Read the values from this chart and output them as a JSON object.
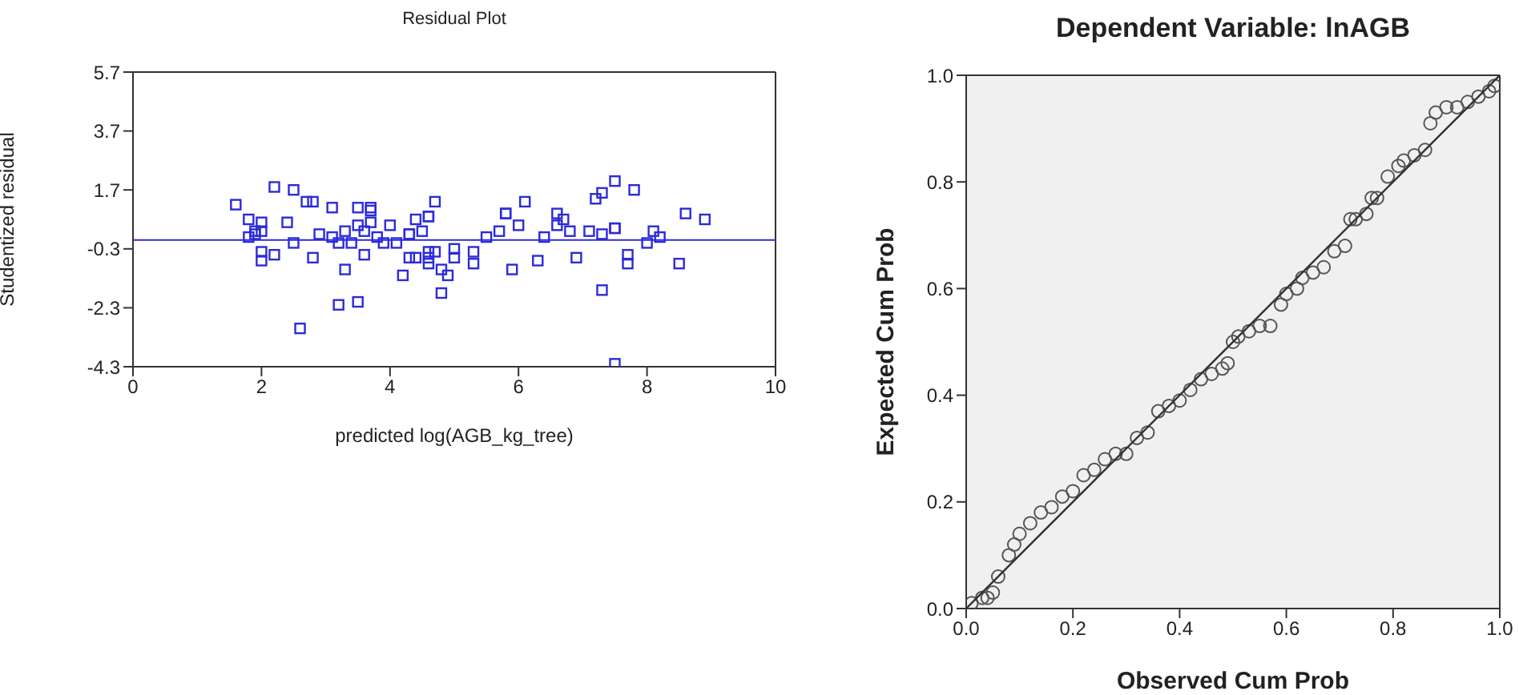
{
  "chart_data": [
    {
      "type": "scatter",
      "title": "Residual Plot",
      "xlabel": "predicted log(AGB_kg_tree)",
      "ylabel": "Studentized residual",
      "xlim": [
        0,
        10
      ],
      "xticks": [
        0,
        2,
        4,
        6,
        8,
        10
      ],
      "ylim": [
        -4.3,
        5.7
      ],
      "yticks": [
        -4.3,
        -2.3,
        -0.3,
        1.7,
        3.7,
        5.7
      ],
      "marker": "square",
      "grid": false,
      "legend": false,
      "ref_lines": [
        {
          "axis": "y",
          "value": 0,
          "color": "#2b2bd9"
        }
      ],
      "series": [
        {
          "color": "#2b2bd9",
          "x": [
            1.6,
            1.8,
            1.8,
            1.9,
            1.9,
            2.0,
            2.0,
            2.0,
            2.0,
            2.2,
            2.2,
            2.4,
            2.5,
            2.5,
            2.6,
            2.7,
            2.8,
            2.8,
            2.9,
            3.1,
            3.1,
            3.2,
            3.2,
            3.3,
            3.3,
            3.4,
            3.5,
            3.5,
            3.5,
            3.6,
            3.6,
            3.7,
            3.7,
            3.7,
            3.8,
            3.9,
            4.0,
            4.1,
            4.2,
            4.3,
            4.3,
            4.3,
            4.4,
            4.4,
            4.5,
            4.6,
            4.6,
            4.6,
            4.6,
            4.6,
            4.7,
            4.7,
            4.8,
            4.8,
            4.9,
            5.0,
            5.0,
            5.3,
            5.3,
            5.5,
            5.7,
            5.8,
            5.8,
            5.9,
            6.0,
            6.1,
            6.3,
            6.4,
            6.6,
            6.6,
            6.7,
            6.8,
            6.9,
            7.1,
            7.2,
            7.3,
            7.3,
            7.3,
            7.5,
            7.5,
            7.5,
            7.5,
            7.7,
            7.7,
            7.8,
            8.0,
            8.1,
            8.2,
            8.5,
            8.6,
            8.9
          ],
          "values": [
            1.2,
            0.7,
            0.1,
            0.2,
            0.3,
            0.3,
            0.6,
            -0.4,
            -0.7,
            -0.5,
            1.8,
            0.6,
            1.7,
            -0.1,
            -3.0,
            1.3,
            1.3,
            -0.6,
            0.2,
            0.1,
            1.1,
            -0.1,
            -2.2,
            0.3,
            -1.0,
            -0.1,
            0.5,
            -2.1,
            1.1,
            0.3,
            -0.5,
            1.0,
            0.6,
            1.1,
            0.1,
            -0.1,
            0.5,
            -0.1,
            -1.2,
            0.2,
            0.2,
            -0.6,
            0.7,
            -0.6,
            0.3,
            -0.6,
            0.8,
            0.8,
            -0.4,
            -0.8,
            -0.4,
            1.3,
            -1.8,
            -1.0,
            -1.2,
            -0.3,
            -0.6,
            -0.4,
            -0.8,
            0.1,
            0.3,
            0.9,
            0.9,
            -1.0,
            0.5,
            1.3,
            -0.7,
            0.1,
            0.9,
            0.5,
            0.7,
            0.3,
            -0.6,
            0.3,
            1.4,
            0.2,
            -1.7,
            1.6,
            0.4,
            2.0,
            0.4,
            -4.2,
            -0.8,
            -0.5,
            1.7,
            -0.1,
            0.3,
            0.1,
            -0.8,
            0.9,
            0.7
          ]
        }
      ]
    },
    {
      "type": "scatter",
      "title": "Dependent Variable: lnAGB",
      "xlabel": "Observed Cum Prob",
      "ylabel": "Expected Cum Prob",
      "xlim": [
        0,
        1
      ],
      "xticks": [
        {
          "value": 0,
          "label": "0.0"
        },
        {
          "value": 0.2,
          "label": "0.2"
        },
        {
          "value": 0.4,
          "label": "0.4"
        },
        {
          "value": 0.6,
          "label": "0.6"
        },
        {
          "value": 0.8,
          "label": "0.8"
        },
        {
          "value": 1,
          "label": "1.0"
        }
      ],
      "ylim": [
        0,
        1
      ],
      "yticks": [
        {
          "value": 0,
          "label": "0.0"
        },
        {
          "value": 0.2,
          "label": "0.2"
        },
        {
          "value": 0.4,
          "label": "0.4"
        },
        {
          "value": 0.6,
          "label": "0.6"
        },
        {
          "value": 0.8,
          "label": "0.8"
        },
        {
          "value": 1,
          "label": "1.0"
        }
      ],
      "grid": false,
      "legend": false,
      "series": [
        {
          "color": "#555555",
          "marker": "circle",
          "x": [
            0.01,
            0.03,
            0.04,
            0.05,
            0.06,
            0.08,
            0.09,
            0.1,
            0.12,
            0.14,
            0.16,
            0.18,
            0.2,
            0.22,
            0.24,
            0.26,
            0.28,
            0.3,
            0.32,
            0.34,
            0.36,
            0.38,
            0.4,
            0.42,
            0.44,
            0.46,
            0.48,
            0.49,
            0.5,
            0.51,
            0.53,
            0.55,
            0.57,
            0.59,
            0.6,
            0.62,
            0.63,
            0.65,
            0.67,
            0.69,
            0.71,
            0.72,
            0.73,
            0.75,
            0.76,
            0.77,
            0.79,
            0.81,
            0.82,
            0.84,
            0.86,
            0.87,
            0.88,
            0.9,
            0.92,
            0.94,
            0.96,
            0.98,
            0.99
          ],
          "values": [
            0.01,
            0.02,
            0.02,
            0.03,
            0.06,
            0.1,
            0.12,
            0.14,
            0.16,
            0.18,
            0.19,
            0.21,
            0.22,
            0.25,
            0.26,
            0.28,
            0.29,
            0.29,
            0.32,
            0.33,
            0.37,
            0.38,
            0.39,
            0.41,
            0.43,
            0.44,
            0.45,
            0.46,
            0.5,
            0.51,
            0.52,
            0.53,
            0.53,
            0.57,
            0.59,
            0.6,
            0.62,
            0.63,
            0.64,
            0.67,
            0.68,
            0.73,
            0.73,
            0.74,
            0.77,
            0.77,
            0.81,
            0.83,
            0.84,
            0.85,
            0.86,
            0.91,
            0.93,
            0.94,
            0.94,
            0.95,
            0.96,
            0.97,
            0.98
          ]
        },
        {
          "type": "line",
          "color": "#333333",
          "marker": "none",
          "x": [
            0,
            1
          ],
          "values": [
            0,
            1
          ]
        }
      ]
    }
  ]
}
